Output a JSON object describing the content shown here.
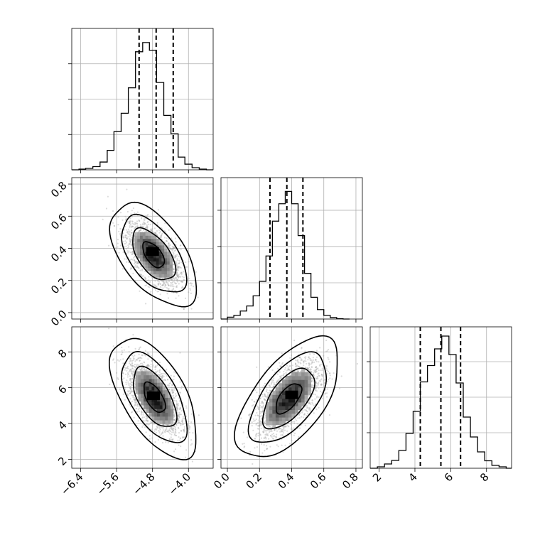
{
  "chart_data": {
    "type": "corner",
    "n_params": 3,
    "params": [
      {
        "range": [
          -6.6,
          -3.45
        ],
        "ticks": [
          -6.4,
          -5.6,
          -4.8,
          -4.0
        ],
        "tick_labels": [
          "−6.4",
          "−5.6",
          "−4.8",
          "−4.0"
        ]
      },
      {
        "range": [
          -0.04,
          0.84
        ],
        "ticks": [
          0.0,
          0.2,
          0.4,
          0.6,
          0.8
        ],
        "tick_labels": [
          "0.0",
          "0.2",
          "0.4",
          "0.6",
          "0.8"
        ]
      },
      {
        "range": [
          1.5,
          9.4
        ],
        "ticks": [
          2,
          4,
          6,
          8
        ],
        "tick_labels": [
          "2",
          "4",
          "6",
          "8"
        ]
      }
    ],
    "histograms": [
      {
        "param": 0,
        "bin_edges": [
          -6.6,
          -6.44,
          -6.29,
          -6.13,
          -5.97,
          -5.81,
          -5.66,
          -5.5,
          -5.34,
          -5.18,
          -5.02,
          -4.87,
          -4.71,
          -4.55,
          -4.39,
          -4.23,
          -4.08,
          -3.92,
          -3.76,
          -3.6,
          -3.45
        ],
        "counts": [
          0,
          2,
          4,
          9,
          22,
          55,
          108,
          160,
          232,
          334,
          360,
          338,
          247,
          154,
          102,
          36,
          16,
          6,
          2,
          0
        ],
        "ylim": [
          0,
          400
        ],
        "y_ticks": [
          100,
          200,
          300
        ],
        "quantiles": [
          -5.1,
          -4.72,
          -4.34
        ]
      },
      {
        "param": 1,
        "bin_edges": [
          -0.04,
          0.0,
          0.04,
          0.08,
          0.12,
          0.16,
          0.2,
          0.24,
          0.28,
          0.32,
          0.36,
          0.4,
          0.44,
          0.48,
          0.52,
          0.56,
          0.6,
          0.64,
          0.68,
          0.72,
          0.76
        ],
        "counts": [
          0,
          5,
          10,
          22,
          36,
          64,
          104,
          174,
          270,
          318,
          352,
          318,
          230,
          126,
          60,
          26,
          10,
          4,
          1,
          0
        ],
        "ylim": [
          0,
          390
        ],
        "y_ticks": [
          100,
          200,
          300
        ],
        "quantiles": [
          0.265,
          0.37,
          0.47
        ]
      },
      {
        "param": 2,
        "bin_edges": [
          1.5,
          1.9,
          2.3,
          2.7,
          3.1,
          3.5,
          3.9,
          4.3,
          4.7,
          5.1,
          5.5,
          5.9,
          6.3,
          6.7,
          7.1,
          7.5,
          7.9,
          8.3,
          8.7,
          9.1,
          9.4
        ],
        "counts": [
          0,
          4,
          12,
          22,
          50,
          98,
          160,
          243,
          289,
          336,
          372,
          320,
          240,
          144,
          88,
          46,
          21,
          8,
          4,
          0
        ],
        "ylim": [
          0,
          398
        ],
        "y_ticks": [
          100,
          200,
          300
        ],
        "quantiles": [
          4.3,
          5.45,
          6.55
        ]
      }
    ],
    "scatter_panels": [
      {
        "x_param": 0,
        "y_param": 1,
        "center": [
          -4.78,
          0.36
        ],
        "sd": [
          0.3,
          0.1
        ],
        "rho": -0.55,
        "levels_sigma": [
          0.5,
          1.0,
          1.5,
          2.0
        ],
        "peak": [
          -4.8,
          0.38
        ]
      },
      {
        "x_param": 0,
        "y_param": 2,
        "center": [
          -4.76,
          5.45
        ],
        "sd": [
          0.3,
          1.05
        ],
        "rho": -0.58,
        "levels_sigma": [
          0.5,
          1.0,
          1.5,
          2.0
        ],
        "peak": [
          -4.78,
          5.55
        ]
      },
      {
        "x_param": 1,
        "y_param": 2,
        "center": [
          0.38,
          5.4
        ],
        "sd": [
          0.1,
          1.05
        ],
        "rho": 0.6,
        "levels_sigma": [
          0.5,
          1.0,
          1.5,
          2.0
        ],
        "peak": [
          0.4,
          5.6
        ]
      }
    ],
    "grid": true
  }
}
